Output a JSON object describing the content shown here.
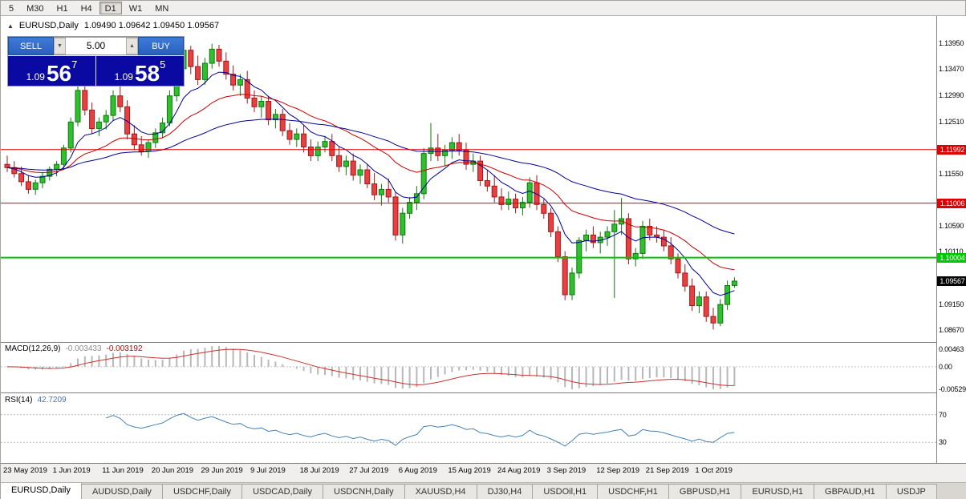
{
  "window": {
    "title": "EURUSD,Daily chart"
  },
  "toolbar": {
    "timeframes": [
      {
        "label": "5",
        "active": false
      },
      {
        "label": "M30",
        "active": false
      },
      {
        "label": "H1",
        "active": false
      },
      {
        "label": "H4",
        "active": false
      },
      {
        "label": "D1",
        "active": true
      },
      {
        "label": "W1",
        "active": false
      },
      {
        "label": "MN",
        "active": false
      }
    ]
  },
  "chart_header": {
    "collapse_icon": "▲",
    "symbol": "EURUSD,Daily",
    "ohlc": "1.09490 1.09642 1.09450 1.09567"
  },
  "trade_panel": {
    "sell_label": "SELL",
    "buy_label": "BUY",
    "volume": "5.00",
    "spin_down_icon": "▼",
    "spin_up_icon": "▲",
    "sell_price": {
      "small": "1.09",
      "big": "56",
      "sup": "7"
    },
    "buy_price": {
      "small": "1.09",
      "big": "58",
      "sup": "5"
    }
  },
  "price_scale": {
    "ticks": [
      {
        "label": "1.13950",
        "value": 1.1395
      },
      {
        "label": "1.13470",
        "value": 1.1347
      },
      {
        "label": "1.12990",
        "value": 1.1299
      },
      {
        "label": "1.12510",
        "value": 1.1251
      },
      {
        "label": "1.11550",
        "value": 1.1155
      },
      {
        "label": "1.10590",
        "value": 1.1059
      },
      {
        "label": "1.10110",
        "value": 1.1011
      },
      {
        "label": "1.09150",
        "value": 1.0915
      },
      {
        "label": "1.08670",
        "value": 1.0867
      }
    ]
  },
  "levels": [
    {
      "label": "1.11992",
      "value": 1.11992,
      "color": "#e00000",
      "width": 1
    },
    {
      "label": "1.11006",
      "value": 1.11006,
      "color": "#e00000",
      "width": 1
    },
    {
      "label": "1.10004",
      "value": 1.10004,
      "color": "#00c800",
      "width": 2
    }
  ],
  "current_price": {
    "label": "1.09567",
    "value": 1.09567,
    "bg": "#000000"
  },
  "macd_panel": {
    "name": "MACD(12,26,9)",
    "value": "-0.003433",
    "signal": "-0.003192",
    "scale_top": "0.00463",
    "scale_zero": "0.00",
    "scale_bottom": "-0.00529"
  },
  "rsi_panel": {
    "name": "RSI(14)",
    "value": "42.7209",
    "level_top": "70",
    "level_bottom": "30"
  },
  "chart_data": {
    "type": "candlestick",
    "symbol": "EURUSD",
    "timeframe": "Daily",
    "y_range": [
      1.0845,
      1.1445
    ],
    "x_labels": [
      {
        "index": 0,
        "label": "23 May 2019"
      },
      {
        "index": 7,
        "label": "1 Jun 2019"
      },
      {
        "index": 14,
        "label": "11 Jun 2019"
      },
      {
        "index": 21,
        "label": "20 Jun 2019"
      },
      {
        "index": 28,
        "label": "29 Jun 2019"
      },
      {
        "index": 35,
        "label": "9 Jul 2019"
      },
      {
        "index": 42,
        "label": "18 Jul 2019"
      },
      {
        "index": 49,
        "label": "27 Jul 2019"
      },
      {
        "index": 56,
        "label": "6 Aug 2019"
      },
      {
        "index": 63,
        "label": "15 Aug 2019"
      },
      {
        "index": 70,
        "label": "24 Aug 2019"
      },
      {
        "index": 77,
        "label": "3 Sep 2019"
      },
      {
        "index": 84,
        "label": "12 Sep 2019"
      },
      {
        "index": 91,
        "label": "21 Sep 2019"
      },
      {
        "index": 98,
        "label": "1 Oct 2019"
      }
    ],
    "candles": [
      [
        1.1172,
        1.1188,
        1.1158,
        1.1166
      ],
      [
        1.1166,
        1.1178,
        1.1148,
        1.1155
      ],
      [
        1.1155,
        1.1168,
        1.1132,
        1.114
      ],
      [
        1.114,
        1.1152,
        1.1118,
        1.1126
      ],
      [
        1.1126,
        1.1144,
        1.1116,
        1.1138
      ],
      [
        1.1138,
        1.1158,
        1.1128,
        1.115
      ],
      [
        1.115,
        1.1168,
        1.1142,
        1.1163
      ],
      [
        1.1163,
        1.1178,
        1.115,
        1.1172
      ],
      [
        1.1172,
        1.1208,
        1.1164,
        1.1202
      ],
      [
        1.1202,
        1.1258,
        1.1194,
        1.125
      ],
      [
        1.125,
        1.1318,
        1.1242,
        1.1308
      ],
      [
        1.1308,
        1.1316,
        1.1262,
        1.1272
      ],
      [
        1.1272,
        1.1286,
        1.1228,
        1.1238
      ],
      [
        1.1238,
        1.1258,
        1.1224,
        1.125
      ],
      [
        1.125,
        1.1272,
        1.1236,
        1.1262
      ],
      [
        1.1262,
        1.1308,
        1.1252,
        1.1298
      ],
      [
        1.1298,
        1.1316,
        1.1268,
        1.1278
      ],
      [
        1.1278,
        1.129,
        1.1218,
        1.1228
      ],
      [
        1.1228,
        1.1244,
        1.1198,
        1.1208
      ],
      [
        1.1208,
        1.1224,
        1.1188,
        1.1196
      ],
      [
        1.1196,
        1.1218,
        1.1184,
        1.1212
      ],
      [
        1.1212,
        1.1238,
        1.1202,
        1.123
      ],
      [
        1.123,
        1.1258,
        1.122,
        1.1248
      ],
      [
        1.1248,
        1.1308,
        1.1242,
        1.1298
      ],
      [
        1.1298,
        1.1358,
        1.1288,
        1.1348
      ],
      [
        1.1348,
        1.1395,
        1.133,
        1.1382
      ],
      [
        1.1382,
        1.139,
        1.1338,
        1.1352
      ],
      [
        1.1352,
        1.1372,
        1.1318,
        1.1328
      ],
      [
        1.1328,
        1.1368,
        1.1318,
        1.1358
      ],
      [
        1.1358,
        1.1394,
        1.1348,
        1.1384
      ],
      [
        1.1384,
        1.1392,
        1.1352,
        1.1362
      ],
      [
        1.1362,
        1.1378,
        1.1328,
        1.1338
      ],
      [
        1.1338,
        1.1354,
        1.1308,
        1.1318
      ],
      [
        1.1318,
        1.1338,
        1.1298,
        1.1328
      ],
      [
        1.1328,
        1.1344,
        1.1284,
        1.1294
      ],
      [
        1.1294,
        1.1308,
        1.1268,
        1.1278
      ],
      [
        1.1278,
        1.1298,
        1.1258,
        1.1288
      ],
      [
        1.1288,
        1.1298,
        1.1244,
        1.1254
      ],
      [
        1.1254,
        1.1274,
        1.1238,
        1.1264
      ],
      [
        1.1264,
        1.1274,
        1.1224,
        1.1234
      ],
      [
        1.1234,
        1.1248,
        1.1208,
        1.1218
      ],
      [
        1.1218,
        1.1238,
        1.1204,
        1.1228
      ],
      [
        1.1228,
        1.1244,
        1.1194,
        1.1204
      ],
      [
        1.1204,
        1.1218,
        1.1178,
        1.1188
      ],
      [
        1.1188,
        1.1214,
        1.1178,
        1.1204
      ],
      [
        1.1204,
        1.1224,
        1.1194,
        1.1214
      ],
      [
        1.1214,
        1.1228,
        1.1178,
        1.1188
      ],
      [
        1.1188,
        1.1204,
        1.1158,
        1.1168
      ],
      [
        1.1168,
        1.1188,
        1.1152,
        1.1178
      ],
      [
        1.1178,
        1.1192,
        1.1142,
        1.1152
      ],
      [
        1.1152,
        1.1172,
        1.1136,
        1.1162
      ],
      [
        1.1162,
        1.1172,
        1.1128,
        1.1136
      ],
      [
        1.1136,
        1.1156,
        1.1106,
        1.1116
      ],
      [
        1.1116,
        1.1136,
        1.1096,
        1.1126
      ],
      [
        1.1126,
        1.1146,
        1.1102,
        1.1112
      ],
      [
        1.1112,
        1.1122,
        1.1032,
        1.1042
      ],
      [
        1.1042,
        1.1092,
        1.1026,
        1.1082
      ],
      [
        1.1082,
        1.1112,
        1.1072,
        1.1102
      ],
      [
        1.1102,
        1.1132,
        1.1088,
        1.1118
      ],
      [
        1.1118,
        1.1202,
        1.1108,
        1.1192
      ],
      [
        1.1192,
        1.1248,
        1.1178,
        1.1202
      ],
      [
        1.1202,
        1.1228,
        1.1178,
        1.1188
      ],
      [
        1.1188,
        1.1208,
        1.1168,
        1.1198
      ],
      [
        1.1198,
        1.1222,
        1.1182,
        1.1212
      ],
      [
        1.1212,
        1.1228,
        1.1188,
        1.1198
      ],
      [
        1.1198,
        1.1212,
        1.1162,
        1.1172
      ],
      [
        1.1172,
        1.1192,
        1.1158,
        1.1178
      ],
      [
        1.1178,
        1.1188,
        1.1132,
        1.1142
      ],
      [
        1.1142,
        1.1162,
        1.1122,
        1.1132
      ],
      [
        1.1132,
        1.1152,
        1.1102,
        1.1112
      ],
      [
        1.1112,
        1.1128,
        1.1088,
        1.1098
      ],
      [
        1.1098,
        1.1122,
        1.1088,
        1.1108
      ],
      [
        1.1108,
        1.1118,
        1.1082,
        1.1092
      ],
      [
        1.1092,
        1.1112,
        1.1078,
        1.1102
      ],
      [
        1.1102,
        1.1148,
        1.1092,
        1.1138
      ],
      [
        1.1138,
        1.1152,
        1.1088,
        1.1098
      ],
      [
        1.1098,
        1.1108,
        1.1072,
        1.1082
      ],
      [
        1.1082,
        1.1092,
        1.1038,
        1.1048
      ],
      [
        1.1048,
        1.1058,
        1.0992,
        1.1002
      ],
      [
        1.1002,
        1.1012,
        1.0922,
        1.0932
      ],
      [
        1.0932,
        1.0982,
        1.0922,
        1.0972
      ],
      [
        1.0972,
        1.1038,
        1.0962,
        1.1032
      ],
      [
        1.1032,
        1.1052,
        1.1012,
        1.1042
      ],
      [
        1.1042,
        1.1058,
        1.1018,
        1.1028
      ],
      [
        1.1028,
        1.1048,
        1.1008,
        1.1038
      ],
      [
        1.1038,
        1.1058,
        1.1022,
        1.1048
      ],
      [
        1.1048,
        1.1088,
        1.0926,
        1.1062
      ],
      [
        1.1062,
        1.111,
        1.1042,
        1.1072
      ],
      [
        1.1072,
        1.1082,
        1.0988,
        1.0998
      ],
      [
        1.0998,
        1.1018,
        1.0984,
        1.1008
      ],
      [
        1.1008,
        1.1068,
        1.0998,
        1.1058
      ],
      [
        1.1058,
        1.1072,
        1.1032,
        1.1042
      ],
      [
        1.1042,
        1.1058,
        1.1028,
        1.1038
      ],
      [
        1.1038,
        1.1052,
        1.1012,
        1.1022
      ],
      [
        1.1022,
        1.1038,
        1.0988,
        1.0998
      ],
      [
        1.0998,
        1.1008,
        1.0962,
        1.0972
      ],
      [
        1.0972,
        1.0988,
        1.0938,
        1.0948
      ],
      [
        1.0948,
        1.0962,
        1.0902,
        1.0912
      ],
      [
        1.0912,
        1.0938,
        1.0898,
        1.0928
      ],
      [
        1.0928,
        1.0938,
        1.0882,
        1.0892
      ],
      [
        1.0892,
        1.0908,
        1.0868,
        1.088
      ],
      [
        1.088,
        1.0924,
        1.0874,
        1.0914
      ],
      [
        1.0914,
        1.0958,
        1.0904,
        1.0949
      ],
      [
        1.0949,
        1.0964,
        1.0945,
        1.0957
      ]
    ],
    "overlays": [
      {
        "type": "ema",
        "period": 8,
        "color": "#000096"
      },
      {
        "type": "ema",
        "period": 21,
        "color": "#c80000"
      },
      {
        "type": "ema",
        "period": 50,
        "color": "#000096"
      }
    ],
    "indicators": [
      {
        "type": "macd",
        "params": [
          12,
          26,
          9
        ],
        "histogram_color": "#b8b8b8",
        "signal_color": "#c83232"
      },
      {
        "type": "rsi",
        "period": 14,
        "color": "#4682b4",
        "levels": [
          70,
          30
        ]
      }
    ]
  },
  "tabs": [
    {
      "label": "EURUSD,Daily",
      "active": true
    },
    {
      "label": "AUDUSD,Daily",
      "active": false
    },
    {
      "label": "USDCHF,Daily",
      "active": false
    },
    {
      "label": "USDCAD,Daily",
      "active": false
    },
    {
      "label": "USDCNH,Daily",
      "active": false
    },
    {
      "label": "XAUUSD,H4",
      "active": false
    },
    {
      "label": "DJ30,H4",
      "active": false
    },
    {
      "label": "USDOil,H1",
      "active": false
    },
    {
      "label": "USDCHF,H1",
      "active": false
    },
    {
      "label": "GBPUSD,H1",
      "active": false
    },
    {
      "label": "EURUSD,H1",
      "active": false
    },
    {
      "label": "GBPAUD,H1",
      "active": false
    },
    {
      "label": "USDJP",
      "active": false
    }
  ],
  "colors": {
    "background": "#ffffff",
    "up_fill": "#2fbf2f",
    "up_stroke": "#0e7a0e",
    "down_fill": "#e84040",
    "down_stroke": "#a31818",
    "panel_navy": "#0a0aa2",
    "button_blue": "#2a60bd",
    "level_red": "#e00000",
    "level_green": "#00c800"
  }
}
